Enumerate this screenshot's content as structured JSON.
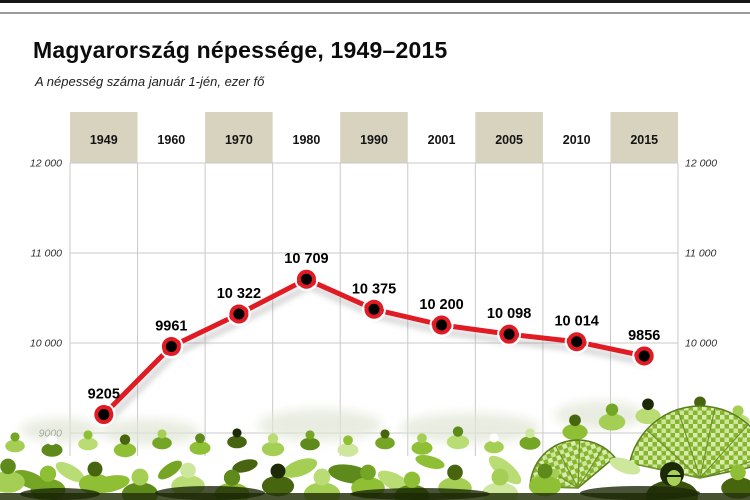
{
  "header": {
    "title": "Magyarország népessége, 1949–2015",
    "subtitle": "A népesség száma január 1-jén, ezer fő"
  },
  "chart_data": {
    "type": "line",
    "title": "Magyarország népessége, 1949–2015",
    "subtitle": "A népesség száma január 1-jén, ezer fő",
    "categories": [
      "1949",
      "1960",
      "1970",
      "1980",
      "1990",
      "2001",
      "2005",
      "2010",
      "2015"
    ],
    "values": [
      9205,
      9961,
      10322,
      10709,
      10375,
      10200,
      10098,
      10014,
      9856
    ],
    "value_labels": [
      "9205",
      "9961",
      "10 322",
      "10 709",
      "10 375",
      "10 200",
      "10 098",
      "10 014",
      "9856"
    ],
    "highlighted_categories": [
      "1949",
      "1970",
      "1990",
      "2005",
      "2015"
    ],
    "ylim": [
      9000,
      12000
    ],
    "yticks": [
      {
        "value": 12000,
        "label": "12 000",
        "show_right": true
      },
      {
        "value": 11000,
        "label": "11 000",
        "show_right": true
      },
      {
        "value": 10000,
        "label": "10 000",
        "show_right": true
      },
      {
        "value": 9000,
        "label": "9000",
        "show_right": false
      }
    ],
    "grid": true,
    "legend": "none",
    "xlabel": "",
    "ylabel": "",
    "colors": {
      "line": "#e01b23",
      "marker_fill": "#000000",
      "marker_ring": "#e01b23",
      "year_band": "#d8d3bf",
      "gridline": "#c9c9c9",
      "background": "#ffffff",
      "crowd_green": "#8fbf35"
    }
  }
}
